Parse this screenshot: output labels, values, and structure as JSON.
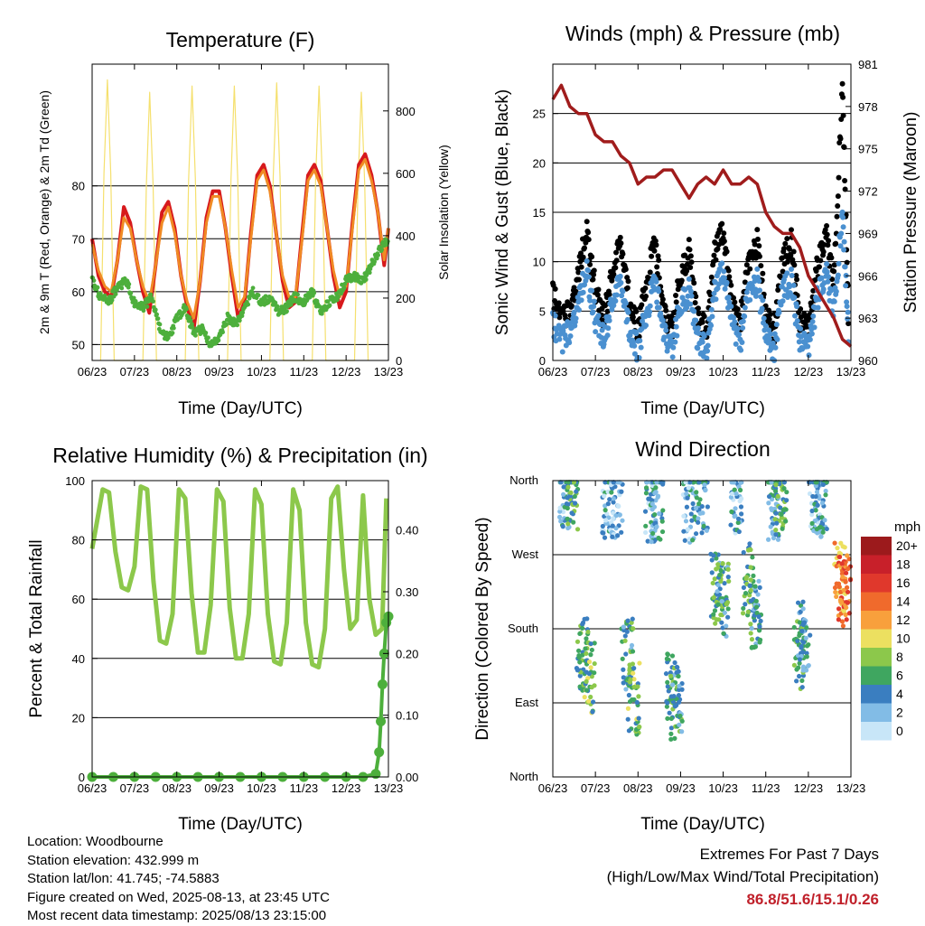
{
  "panels": {
    "temperature": {
      "title": "Temperature (F)",
      "ylabel_left": "2m & 9m T (Red, Orange) & 2m Td (Green)",
      "ylabel_right": "Solar Insolation (Yellow)",
      "xlabel": "Time (Day/UTC)"
    },
    "winds": {
      "title": "Winds (mph) & Pressure (mb)",
      "ylabel_left": "Sonic Wind & Gust (Blue, Black)",
      "ylabel_right": "Station Pressure (Maroon)",
      "xlabel": "Time (Day/UTC)"
    },
    "humidity": {
      "title": "Relative Humidity (%) & Precipitation (in)",
      "ylabel_left": "Percent & Total Rainfall",
      "xlabel": "Time (Day/UTC)"
    },
    "direction": {
      "title": "Wind Direction",
      "ylabel_left": "Direction (Colored By Speed)",
      "xlabel": "Time (Day/UTC)",
      "legend_title": "mph"
    }
  },
  "info": {
    "location": "Location: Woodbourne",
    "elevation": "Station elevation: 432.999 m",
    "latlon": "Station lat/lon: 41.745; -74.5883",
    "created": "Figure created on Wed, 2025-08-13, at 23:45 UTC",
    "recent": "Most recent data timestamp: 2025/08/13 23:15:00"
  },
  "extremes": {
    "line1": "Extremes For Past 7 Days",
    "line2": "(High/Low/Max Wind/Total Precipitation)",
    "values": "86.8/51.6/15.1/0.26"
  },
  "colors": {
    "temp_2m": "#d7191c",
    "temp_9m": "#f08a24",
    "dewpoint": "#4daf3c",
    "insolation": "#f5e06e",
    "wind": "#4a90d0",
    "gust": "#000000",
    "pressure": "#a01c1c",
    "rh": "#8cc84b",
    "precip": "#4daf3c"
  },
  "chart_data": [
    {
      "type": "line",
      "panel": "temperature",
      "x_ticks": [
        "06/23",
        "07/23",
        "08/23",
        "09/23",
        "10/23",
        "11/23",
        "12/23",
        "13/23"
      ],
      "xlim": [
        0,
        7
      ],
      "ylim": [
        47,
        103
      ],
      "y_ticks": [
        50,
        60,
        70,
        80
      ],
      "y2lim": [
        0,
        950
      ],
      "y2_ticks": [
        0,
        200,
        400,
        600,
        800
      ],
      "grid": true,
      "series": [
        {
          "key": "temp_2m",
          "color": "#d7191c",
          "x": [
            0,
            0.15,
            0.3,
            0.45,
            0.6,
            0.75,
            0.9,
            1.05,
            1.2,
            1.35,
            1.5,
            1.65,
            1.8,
            1.95,
            2.1,
            2.25,
            2.4,
            2.55,
            2.7,
            2.85,
            3.0,
            3.15,
            3.3,
            3.45,
            3.6,
            3.75,
            3.9,
            4.05,
            4.2,
            4.35,
            4.5,
            4.65,
            4.8,
            4.95,
            5.1,
            5.25,
            5.4,
            5.55,
            5.7,
            5.85,
            6.0,
            6.15,
            6.3,
            6.45,
            6.6,
            6.75,
            6.9,
            7.0
          ],
          "y": [
            70,
            63,
            60,
            59,
            66,
            76,
            73,
            66,
            60,
            56,
            65,
            75,
            77,
            72,
            63,
            57,
            53,
            62,
            74,
            79,
            79,
            72,
            63,
            55,
            58,
            71,
            82,
            84,
            80,
            71,
            62,
            57,
            58,
            70,
            82,
            84,
            81,
            72,
            63,
            57,
            60,
            73,
            84,
            86,
            82,
            75,
            65,
            72
          ]
        },
        {
          "key": "temp_9m",
          "color": "#f08a24",
          "x": [
            0,
            0.15,
            0.3,
            0.45,
            0.6,
            0.75,
            0.9,
            1.05,
            1.2,
            1.35,
            1.5,
            1.65,
            1.8,
            1.95,
            2.1,
            2.25,
            2.4,
            2.55,
            2.7,
            2.85,
            3.0,
            3.15,
            3.3,
            3.45,
            3.6,
            3.75,
            3.9,
            4.05,
            4.2,
            4.35,
            4.5,
            4.65,
            4.8,
            4.95,
            5.1,
            5.25,
            5.4,
            5.55,
            5.7,
            5.85,
            6.0,
            6.15,
            6.3,
            6.45,
            6.6,
            6.75,
            6.9,
            7.0
          ],
          "y": [
            69,
            64,
            61,
            60,
            66,
            74,
            72,
            66,
            61,
            58,
            65,
            73,
            76,
            71,
            63,
            58,
            55,
            62,
            73,
            78,
            78,
            72,
            64,
            57,
            59,
            70,
            81,
            83,
            79,
            71,
            63,
            59,
            59,
            69,
            81,
            83,
            80,
            72,
            64,
            59,
            61,
            72,
            83,
            85,
            81,
            75,
            66,
            72
          ]
        },
        {
          "key": "dewpoint",
          "color": "#4daf3c",
          "x": [
            0,
            0.2,
            0.4,
            0.6,
            0.8,
            1.0,
            1.2,
            1.4,
            1.6,
            1.8,
            2.0,
            2.2,
            2.4,
            2.6,
            2.8,
            3.0,
            3.2,
            3.4,
            3.6,
            3.8,
            4.0,
            4.2,
            4.4,
            4.6,
            4.8,
            5.0,
            5.2,
            5.4,
            5.6,
            5.8,
            6.0,
            6.2,
            6.4,
            6.6,
            6.8,
            7.0
          ],
          "y": [
            62,
            59,
            58,
            61,
            62,
            58,
            57,
            59,
            53,
            51,
            55,
            57,
            52,
            53,
            50,
            51,
            55,
            54,
            57,
            60,
            58,
            59,
            56,
            57,
            59,
            58,
            60,
            56,
            58,
            59,
            62,
            63,
            62,
            65,
            68,
            70
          ]
        },
        {
          "key": "insolation",
          "color": "#f5e06e",
          "axis": "right",
          "x": [
            0.2,
            0.28,
            0.36,
            0.44,
            0.52,
            1.2,
            1.28,
            1.36,
            1.44,
            1.52,
            2.2,
            2.28,
            2.36,
            2.44,
            2.52,
            3.2,
            3.28,
            3.36,
            3.44,
            3.52,
            4.2,
            4.28,
            4.36,
            4.44,
            4.52,
            5.2,
            5.28,
            5.36,
            5.44,
            5.52,
            6.2,
            6.28,
            6.36,
            6.44,
            6.52
          ],
          "y": [
            0,
            600,
            900,
            600,
            0,
            0,
            560,
            860,
            560,
            0,
            0,
            580,
            880,
            580,
            0,
            0,
            580,
            880,
            580,
            0,
            0,
            590,
            890,
            590,
            0,
            0,
            580,
            880,
            580,
            0,
            0,
            560,
            860,
            560,
            0
          ]
        }
      ]
    },
    {
      "type": "line",
      "panel": "winds",
      "x_ticks": [
        "06/23",
        "07/23",
        "08/23",
        "09/23",
        "10/23",
        "11/23",
        "12/23",
        "13/23"
      ],
      "xlim": [
        0,
        7
      ],
      "ylim": [
        0,
        30
      ],
      "y_ticks": [
        0,
        5,
        10,
        15,
        20,
        25
      ],
      "y2lim": [
        960,
        981
      ],
      "y2_ticks": [
        960,
        963,
        966,
        969,
        972,
        975,
        978,
        981
      ],
      "grid": true,
      "series": [
        {
          "key": "gust",
          "color": "#000000",
          "x": [
            0,
            0.2,
            0.4,
            0.6,
            0.8,
            1.0,
            1.2,
            1.4,
            1.6,
            1.8,
            2.0,
            2.2,
            2.4,
            2.6,
            2.8,
            3.0,
            3.2,
            3.4,
            3.6,
            3.8,
            4.0,
            4.2,
            4.4,
            4.6,
            4.8,
            5.0,
            5.2,
            5.4,
            5.6,
            5.8,
            6.0,
            6.2,
            6.4,
            6.6,
            6.8,
            6.95
          ],
          "y": [
            7,
            4,
            5,
            9,
            13,
            7,
            4,
            9,
            12,
            6,
            3,
            8,
            12,
            5,
            3,
            9,
            11,
            4,
            3,
            11,
            13,
            6,
            4,
            10,
            12,
            5,
            3,
            10,
            12,
            4,
            3,
            9,
            13,
            8,
            28,
            3
          ]
        },
        {
          "key": "wind",
          "color": "#4a90d0",
          "x": [
            0,
            0.2,
            0.4,
            0.6,
            0.8,
            1.0,
            1.2,
            1.4,
            1.6,
            1.8,
            2.0,
            2.2,
            2.4,
            2.6,
            2.8,
            3.0,
            3.2,
            3.4,
            3.6,
            3.8,
            4.0,
            4.2,
            4.4,
            4.6,
            4.8,
            5.0,
            5.2,
            5.4,
            5.6,
            5.8,
            6.0,
            6.2,
            6.4,
            6.6,
            6.8,
            6.95
          ],
          "y": [
            4,
            2,
            3,
            6,
            9,
            4,
            2,
            6,
            8,
            3,
            1,
            5,
            8,
            3,
            1,
            6,
            7,
            2,
            1,
            7,
            9,
            4,
            2,
            7,
            8,
            3,
            1,
            7,
            8,
            2,
            1,
            6,
            9,
            5,
            15,
            2
          ]
        },
        {
          "key": "pressure",
          "color": "#a01c1c",
          "axis": "right",
          "x": [
            0,
            0.2,
            0.4,
            0.6,
            0.8,
            1.0,
            1.2,
            1.4,
            1.6,
            1.8,
            2.0,
            2.2,
            2.4,
            2.6,
            2.8,
            3.0,
            3.2,
            3.4,
            3.6,
            3.8,
            4.0,
            4.2,
            4.4,
            4.6,
            4.8,
            5.0,
            5.2,
            5.4,
            5.6,
            5.8,
            6.0,
            6.2,
            6.4,
            6.6,
            6.8,
            7.0
          ],
          "y": [
            978.5,
            979.5,
            978,
            977.5,
            977.5,
            976,
            975.5,
            975.5,
            974.5,
            974,
            972.5,
            973,
            973,
            973.5,
            973.5,
            972.5,
            971.5,
            972.5,
            973,
            972.5,
            973.5,
            972.5,
            972.5,
            973,
            972.5,
            970.5,
            969.5,
            969,
            969,
            968,
            966,
            965,
            964,
            963,
            961.5,
            961
          ]
        }
      ]
    },
    {
      "type": "line",
      "panel": "humidity",
      "x_ticks": [
        "06/23",
        "07/23",
        "08/23",
        "09/23",
        "10/23",
        "11/23",
        "12/23",
        "13/23"
      ],
      "xlim": [
        0,
        7
      ],
      "ylim": [
        0,
        100
      ],
      "y_ticks": [
        0,
        20,
        40,
        60,
        80,
        100
      ],
      "y2lim": [
        0,
        0.48
      ],
      "y2_ticks": [
        "0.00",
        "0.10",
        "0.20",
        "0.30",
        "0.40"
      ],
      "grid": true,
      "series": [
        {
          "key": "rh",
          "color": "#8cc84b",
          "x": [
            0,
            0.1,
            0.25,
            0.4,
            0.55,
            0.7,
            0.85,
            1.0,
            1.15,
            1.3,
            1.45,
            1.6,
            1.75,
            1.9,
            2.05,
            2.2,
            2.35,
            2.5,
            2.65,
            2.8,
            2.95,
            3.1,
            3.25,
            3.4,
            3.55,
            3.7,
            3.85,
            4.0,
            4.15,
            4.3,
            4.45,
            4.6,
            4.75,
            4.9,
            5.05,
            5.2,
            5.35,
            5.5,
            5.65,
            5.8,
            5.95,
            6.1,
            6.25,
            6.4,
            6.55,
            6.7,
            6.85,
            6.95
          ],
          "y": [
            77,
            85,
            97,
            96,
            76,
            64,
            63,
            71,
            98,
            97,
            66,
            46,
            45,
            55,
            97,
            94,
            62,
            42,
            42,
            58,
            97,
            93,
            57,
            40,
            40,
            55,
            97,
            92,
            55,
            39,
            38,
            52,
            97,
            90,
            52,
            38,
            37,
            50,
            94,
            98,
            70,
            50,
            53,
            95,
            60,
            48,
            50,
            94
          ]
        },
        {
          "key": "precip",
          "color": "#4daf3c",
          "axis": "right",
          "x": [
            0,
            0.5,
            1.0,
            1.5,
            2.0,
            2.5,
            3.0,
            3.5,
            4.0,
            4.5,
            5.0,
            5.5,
            6.0,
            6.4,
            6.7,
            6.78,
            6.82,
            6.86,
            6.9,
            6.95,
            7.0
          ],
          "y": [
            0,
            0,
            0,
            0,
            0,
            0,
            0,
            0,
            0,
            0,
            0,
            0,
            0,
            0,
            0.005,
            0.04,
            0.09,
            0.15,
            0.2,
            0.25,
            0.26
          ]
        }
      ]
    },
    {
      "type": "scatter",
      "panel": "direction",
      "x_ticks": [
        "06/23",
        "07/23",
        "08/23",
        "09/23",
        "10/23",
        "11/23",
        "12/23",
        "13/23"
      ],
      "xlim": [
        0,
        7
      ],
      "y_ticks": [
        "North",
        "East",
        "South",
        "West",
        "North"
      ],
      "ylim": [
        0,
        360
      ],
      "legend": {
        "title": "mph",
        "labels": [
          "20+",
          "18",
          "16",
          "14",
          "12",
          "10",
          "8",
          "6",
          "4",
          "2",
          "0"
        ],
        "colors": [
          "#9c1a1c",
          "#c8202a",
          "#e0382c",
          "#f06a2c",
          "#f8a03c",
          "#ece060",
          "#8cc84b",
          "#3fa660",
          "#3a7ec0",
          "#82bce6",
          "#c8e6f8"
        ]
      },
      "clusters": [
        {
          "x": 0.3,
          "dir": 340,
          "speed": 3
        },
        {
          "x": 0.45,
          "dir": 345,
          "speed": 6
        },
        {
          "x": 0.7,
          "dir": 150,
          "speed": 6
        },
        {
          "x": 0.85,
          "dir": 120,
          "speed": 7
        },
        {
          "x": 1.3,
          "dir": 335,
          "speed": 3
        },
        {
          "x": 1.5,
          "dir": 330,
          "speed": 2
        },
        {
          "x": 1.75,
          "dir": 150,
          "speed": 5
        },
        {
          "x": 1.9,
          "dir": 95,
          "speed": 7
        },
        {
          "x": 2.3,
          "dir": 330,
          "speed": 3
        },
        {
          "x": 2.45,
          "dir": 330,
          "speed": 4
        },
        {
          "x": 2.8,
          "dir": 110,
          "speed": 6
        },
        {
          "x": 2.9,
          "dir": 90,
          "speed": 5
        },
        {
          "x": 3.2,
          "dir": 330,
          "speed": 3
        },
        {
          "x": 3.5,
          "dir": 335,
          "speed": 4
        },
        {
          "x": 3.85,
          "dir": 230,
          "speed": 6
        },
        {
          "x": 4.0,
          "dir": 215,
          "speed": 5
        },
        {
          "x": 4.3,
          "dir": 340,
          "speed": 3
        },
        {
          "x": 4.6,
          "dir": 240,
          "speed": 6
        },
        {
          "x": 4.75,
          "dir": 200,
          "speed": 5
        },
        {
          "x": 5.2,
          "dir": 330,
          "speed": 4
        },
        {
          "x": 5.35,
          "dir": 335,
          "speed": 6
        },
        {
          "x": 5.8,
          "dir": 150,
          "speed": 6
        },
        {
          "x": 5.9,
          "dir": 170,
          "speed": 4
        },
        {
          "x": 6.15,
          "dir": 340,
          "speed": 3
        },
        {
          "x": 6.3,
          "dir": 335,
          "speed": 4
        },
        {
          "x": 6.75,
          "dir": 240,
          "speed": 12
        },
        {
          "x": 6.85,
          "dir": 225,
          "speed": 14
        }
      ]
    }
  ]
}
